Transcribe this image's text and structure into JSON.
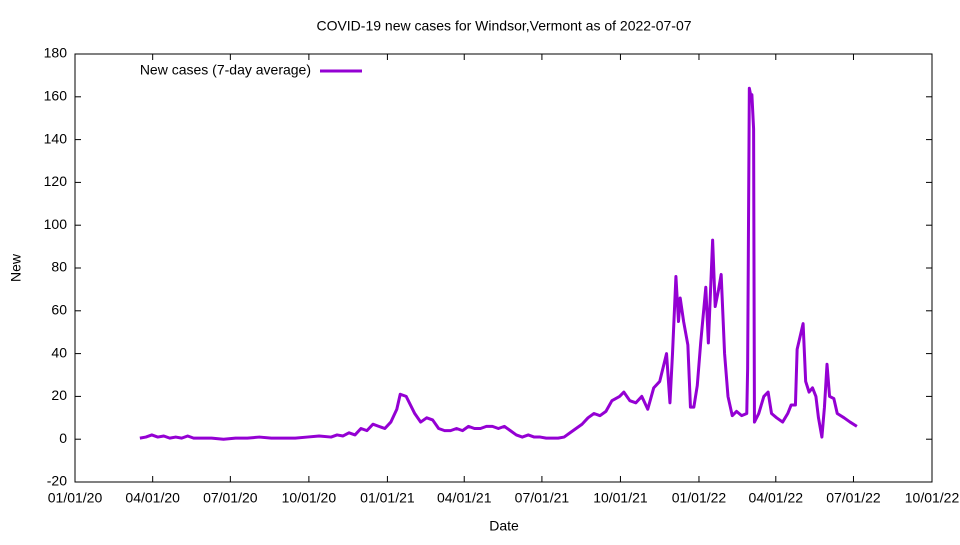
{
  "chart_data": {
    "type": "line",
    "title": "COVID-19 new cases for Windsor,Vermont as of 2022-07-07",
    "x_label": "Date",
    "y_label": "New",
    "legend": "top-left",
    "x": [
      "2020-03-17",
      "2020-03-24",
      "2020-03-31",
      "2020-04-07",
      "2020-04-14",
      "2020-04-21",
      "2020-04-28",
      "2020-05-05",
      "2020-05-12",
      "2020-05-19",
      "2020-05-26",
      "2020-06-09",
      "2020-06-23",
      "2020-07-07",
      "2020-07-21",
      "2020-08-04",
      "2020-08-18",
      "2020-09-01",
      "2020-09-15",
      "2020-09-29",
      "2020-10-13",
      "2020-10-27",
      "2020-11-03",
      "2020-11-10",
      "2020-11-17",
      "2020-11-24",
      "2020-12-01",
      "2020-12-08",
      "2020-12-15",
      "2020-12-22",
      "2020-12-29",
      "2021-01-05",
      "2021-01-12",
      "2021-01-16",
      "2021-01-23",
      "2021-02-02",
      "2021-02-09",
      "2021-02-16",
      "2021-02-23",
      "2021-03-02",
      "2021-03-09",
      "2021-03-16",
      "2021-03-23",
      "2021-03-30",
      "2021-04-06",
      "2021-04-13",
      "2021-04-20",
      "2021-04-27",
      "2021-05-04",
      "2021-05-11",
      "2021-05-18",
      "2021-05-25",
      "2021-06-01",
      "2021-06-08",
      "2021-06-15",
      "2021-06-22",
      "2021-06-29",
      "2021-07-06",
      "2021-07-13",
      "2021-07-20",
      "2021-07-27",
      "2021-08-03",
      "2021-08-10",
      "2021-08-17",
      "2021-08-24",
      "2021-08-31",
      "2021-09-07",
      "2021-09-14",
      "2021-09-21",
      "2021-09-30",
      "2021-10-05",
      "2021-10-12",
      "2021-10-19",
      "2021-10-26",
      "2021-11-02",
      "2021-11-09",
      "2021-11-16",
      "2021-11-24",
      "2021-11-28",
      "2021-12-01",
      "2021-12-05",
      "2021-12-08",
      "2021-12-10",
      "2021-12-14",
      "2021-12-19",
      "2021-12-22",
      "2021-12-26",
      "2021-12-30",
      "2022-01-03",
      "2022-01-09",
      "2022-01-12",
      "2022-01-17",
      "2022-01-20",
      "2022-01-24",
      "2022-01-27",
      "2022-01-31",
      "2022-02-04",
      "2022-02-09",
      "2022-02-14",
      "2022-02-20",
      "2022-02-26",
      "2022-02-27",
      "2022-03-01",
      "2022-03-03",
      "2022-03-04",
      "2022-03-06",
      "2022-03-07",
      "2022-03-12",
      "2022-03-18",
      "2022-03-23",
      "2022-03-27",
      "2022-04-02",
      "2022-04-09",
      "2022-04-15",
      "2022-04-19",
      "2022-04-24",
      "2022-04-26",
      "2022-05-03",
      "2022-05-06",
      "2022-05-10",
      "2022-05-14",
      "2022-05-18",
      "2022-05-21",
      "2022-05-25",
      "2022-05-28",
      "2022-05-31",
      "2022-06-03",
      "2022-06-08",
      "2022-06-12",
      "2022-06-20",
      "2022-06-27",
      "2022-07-05"
    ],
    "series": [
      {
        "name": "New cases (7-day average)",
        "color": "#9400d3",
        "values": [
          0.5,
          1,
          2,
          1,
          1.5,
          0.5,
          1,
          0.5,
          1.5,
          0.5,
          0.5,
          0.5,
          0,
          0.5,
          0.5,
          1,
          0.5,
          0.5,
          0.5,
          1,
          1.5,
          1,
          2,
          1.5,
          3,
          2,
          5,
          4,
          7,
          6,
          5,
          8,
          14,
          21,
          20,
          12,
          8,
          10,
          9,
          5,
          4,
          4,
          5,
          4,
          6,
          5,
          5,
          6,
          6,
          5,
          6,
          4,
          2,
          1,
          2,
          1,
          1,
          0.5,
          0.5,
          0.5,
          1,
          3,
          5,
          7,
          10,
          12,
          11,
          13,
          18,
          20,
          22,
          18,
          17,
          20,
          14,
          24,
          27,
          40,
          17,
          40,
          76,
          55,
          66,
          55,
          44,
          15,
          15,
          25,
          45,
          71,
          45,
          93,
          62,
          70,
          77,
          40,
          20,
          11,
          13,
          11,
          12,
          33,
          164,
          160,
          161,
          145,
          8,
          12,
          20,
          22,
          12,
          10,
          8,
          12,
          16,
          16,
          42,
          54,
          27,
          22,
          24,
          20,
          10,
          1,
          15,
          35,
          20,
          19,
          12,
          10,
          8,
          6
        ]
      }
    ],
    "xlim": [
      "2020-01-01",
      "2022-10-01"
    ],
    "xticks": [
      {
        "value": "2020-01-01",
        "label": "01/01/20"
      },
      {
        "value": "2020-04-01",
        "label": "04/01/20"
      },
      {
        "value": "2020-07-01",
        "label": "07/01/20"
      },
      {
        "value": "2020-10-01",
        "label": "10/01/20"
      },
      {
        "value": "2021-01-01",
        "label": "01/01/21"
      },
      {
        "value": "2021-04-01",
        "label": "04/01/21"
      },
      {
        "value": "2021-07-01",
        "label": "07/01/21"
      },
      {
        "value": "2021-10-01",
        "label": "10/01/21"
      },
      {
        "value": "2022-01-01",
        "label": "01/01/22"
      },
      {
        "value": "2022-04-01",
        "label": "04/01/22"
      },
      {
        "value": "2022-07-01",
        "label": "07/01/22"
      },
      {
        "value": "2022-10-01",
        "label": "10/01/22"
      }
    ],
    "ylim": [
      -20,
      180
    ],
    "yticks": [
      -20,
      0,
      20,
      40,
      60,
      80,
      100,
      120,
      140,
      160,
      180
    ],
    "grid": false
  }
}
